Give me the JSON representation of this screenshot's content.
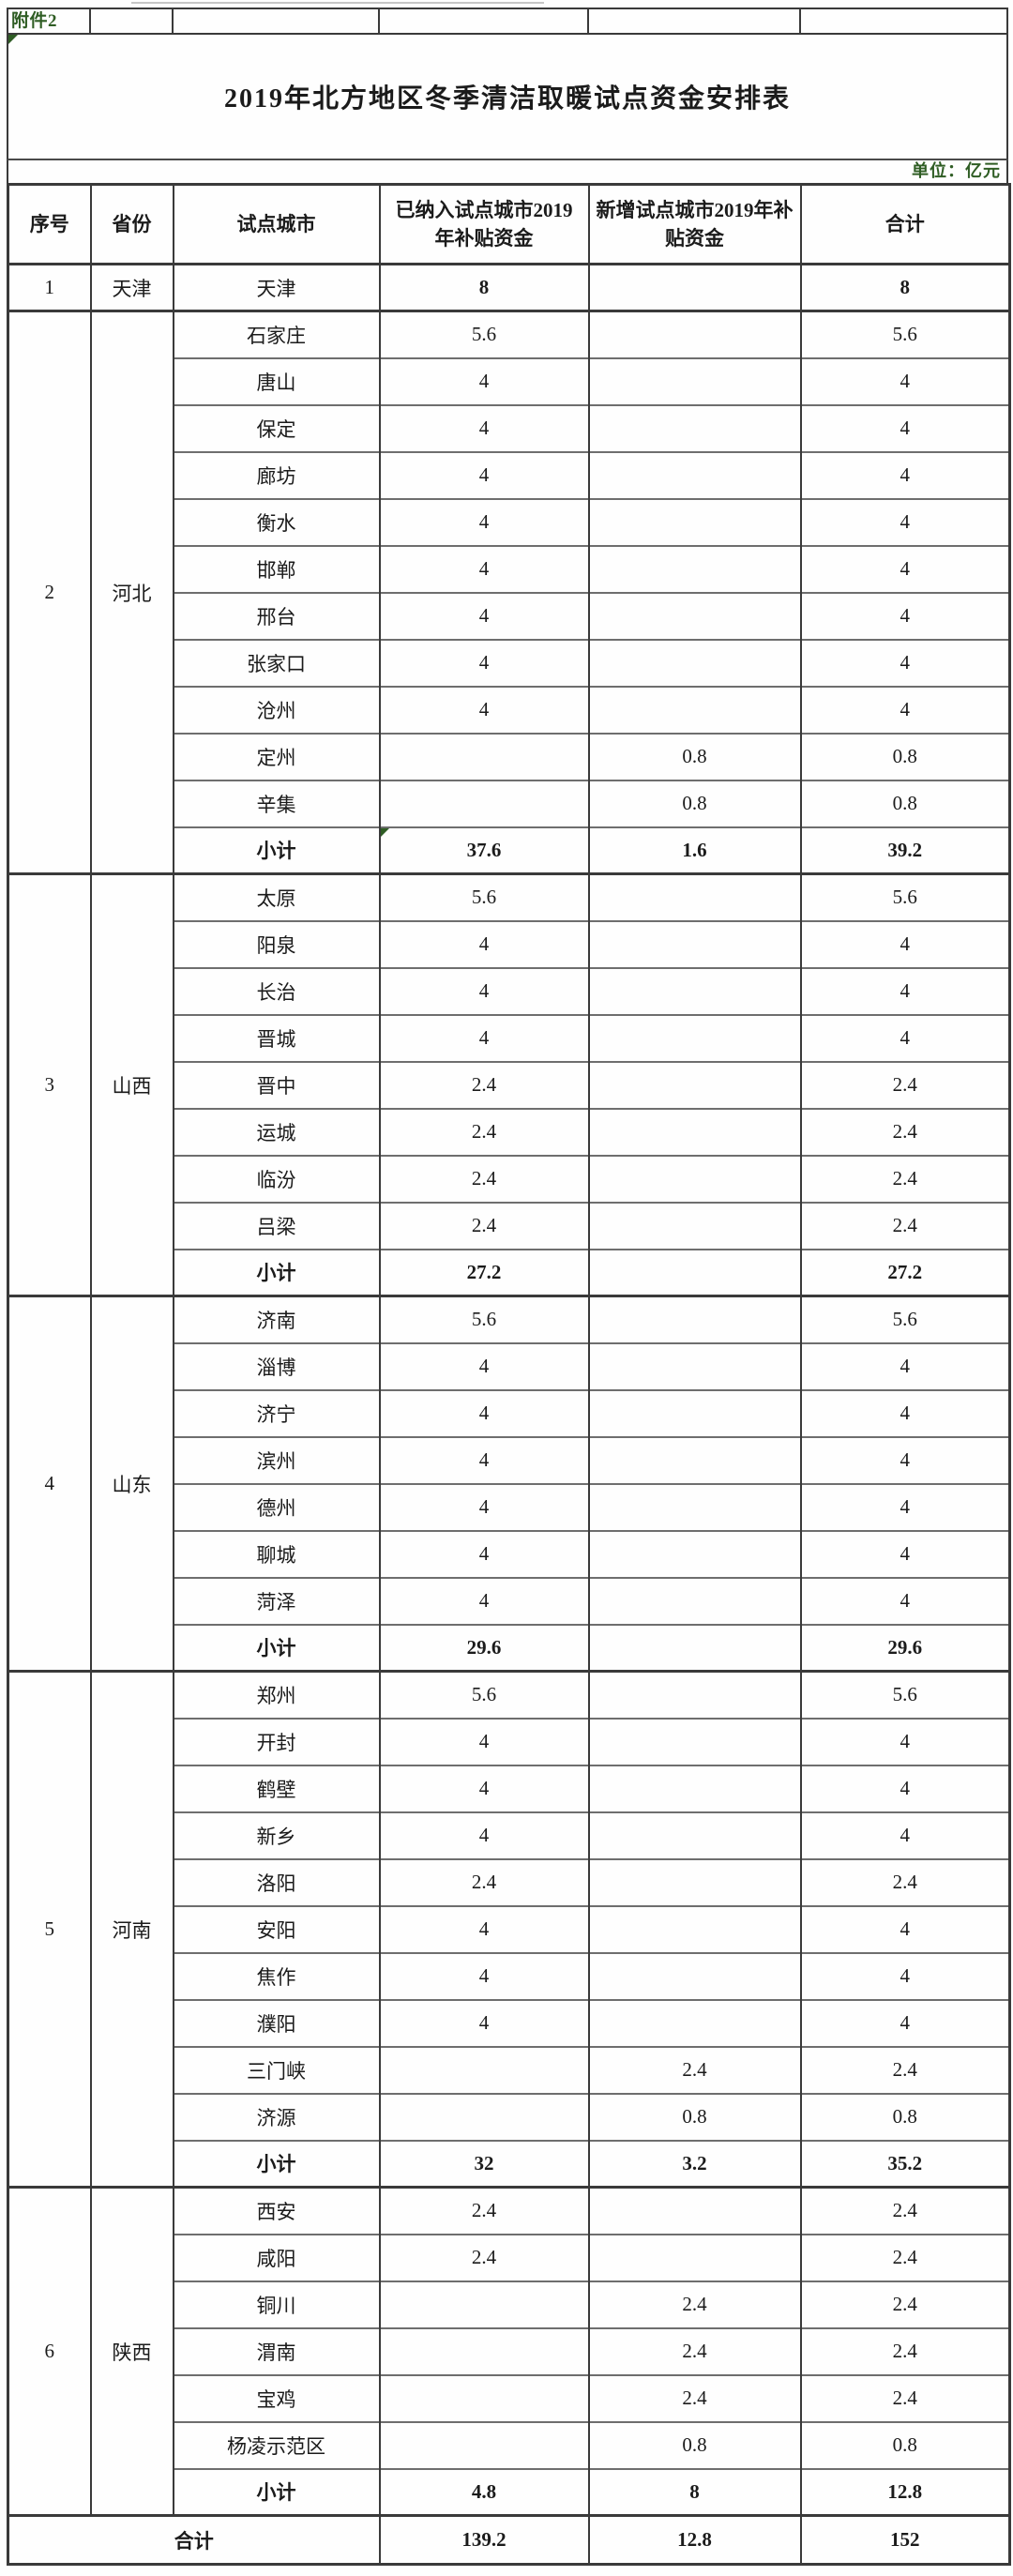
{
  "attachment_label": "附件2",
  "title": "2019年北方地区冬季清洁取暖试点资金安排表",
  "unit_note": "单位：亿元",
  "colors": {
    "accent_green": "#2f5d24",
    "border_dark": "#3a3a3a",
    "border_light": "#6e6e6e",
    "text": "#1b1b1b"
  },
  "table": {
    "headers": [
      "序号",
      "省份",
      "试点城市",
      "已纳入试点城市2019年补贴资金",
      "新增试点城市2019年补贴资金",
      "合计"
    ],
    "groups": [
      {
        "index": "1",
        "province": "天津",
        "rows": [
          {
            "city": "天津",
            "existing": "8",
            "added": "",
            "total": "8",
            "emphasis": true
          }
        ]
      },
      {
        "index": "2",
        "province": "河北",
        "rows": [
          {
            "city": "石家庄",
            "existing": "5.6",
            "added": "",
            "total": "5.6"
          },
          {
            "city": "唐山",
            "existing": "4",
            "added": "",
            "total": "4"
          },
          {
            "city": "保定",
            "existing": "4",
            "added": "",
            "total": "4"
          },
          {
            "city": "廊坊",
            "existing": "4",
            "added": "",
            "total": "4"
          },
          {
            "city": "衡水",
            "existing": "4",
            "added": "",
            "total": "4"
          },
          {
            "city": "邯郸",
            "existing": "4",
            "added": "",
            "total": "4"
          },
          {
            "city": "邢台",
            "existing": "4",
            "added": "",
            "total": "4"
          },
          {
            "city": "张家口",
            "existing": "4",
            "added": "",
            "total": "4"
          },
          {
            "city": "沧州",
            "existing": "4",
            "added": "",
            "total": "4"
          },
          {
            "city": "定州",
            "existing": "",
            "added": "0.8",
            "total": "0.8"
          },
          {
            "city": "辛集",
            "existing": "",
            "added": "0.8",
            "total": "0.8"
          },
          {
            "city": "小计",
            "existing": "37.6",
            "added": "1.6",
            "total": "39.2",
            "subtotal": true,
            "indicator": true
          }
        ]
      },
      {
        "index": "3",
        "province": "山西",
        "rows": [
          {
            "city": "太原",
            "existing": "5.6",
            "added": "",
            "total": "5.6"
          },
          {
            "city": "阳泉",
            "existing": "4",
            "added": "",
            "total": "4"
          },
          {
            "city": "长治",
            "existing": "4",
            "added": "",
            "total": "4"
          },
          {
            "city": "晋城",
            "existing": "4",
            "added": "",
            "total": "4"
          },
          {
            "city": "晋中",
            "existing": "2.4",
            "added": "",
            "total": "2.4"
          },
          {
            "city": "运城",
            "existing": "2.4",
            "added": "",
            "total": "2.4"
          },
          {
            "city": "临汾",
            "existing": "2.4",
            "added": "",
            "total": "2.4"
          },
          {
            "city": "吕梁",
            "existing": "2.4",
            "added": "",
            "total": "2.4"
          },
          {
            "city": "小计",
            "existing": "27.2",
            "added": "",
            "total": "27.2",
            "subtotal": true
          }
        ]
      },
      {
        "index": "4",
        "province": "山东",
        "rows": [
          {
            "city": "济南",
            "existing": "5.6",
            "added": "",
            "total": "5.6"
          },
          {
            "city": "淄博",
            "existing": "4",
            "added": "",
            "total": "4"
          },
          {
            "city": "济宁",
            "existing": "4",
            "added": "",
            "total": "4"
          },
          {
            "city": "滨州",
            "existing": "4",
            "added": "",
            "total": "4"
          },
          {
            "city": "德州",
            "existing": "4",
            "added": "",
            "total": "4"
          },
          {
            "city": "聊城",
            "existing": "4",
            "added": "",
            "total": "4"
          },
          {
            "city": "菏泽",
            "existing": "4",
            "added": "",
            "total": "4"
          },
          {
            "city": "小计",
            "existing": "29.6",
            "added": "",
            "total": "29.6",
            "subtotal": true
          }
        ]
      },
      {
        "index": "5",
        "province": "河南",
        "rows": [
          {
            "city": "郑州",
            "existing": "5.6",
            "added": "",
            "total": "5.6"
          },
          {
            "city": "开封",
            "existing": "4",
            "added": "",
            "total": "4"
          },
          {
            "city": "鹤壁",
            "existing": "4",
            "added": "",
            "total": "4"
          },
          {
            "city": "新乡",
            "existing": "4",
            "added": "",
            "total": "4"
          },
          {
            "city": "洛阳",
            "existing": "2.4",
            "added": "",
            "total": "2.4"
          },
          {
            "city": "安阳",
            "existing": "4",
            "added": "",
            "total": "4"
          },
          {
            "city": "焦作",
            "existing": "4",
            "added": "",
            "total": "4"
          },
          {
            "city": "濮阳",
            "existing": "4",
            "added": "",
            "total": "4"
          },
          {
            "city": "三门峡",
            "existing": "",
            "added": "2.4",
            "total": "2.4"
          },
          {
            "city": "济源",
            "existing": "",
            "added": "0.8",
            "total": "0.8"
          },
          {
            "city": "小计",
            "existing": "32",
            "added": "3.2",
            "total": "35.2",
            "subtotal": true
          }
        ]
      },
      {
        "index": "6",
        "province": "陕西",
        "rows": [
          {
            "city": "西安",
            "existing": "2.4",
            "added": "",
            "total": "2.4"
          },
          {
            "city": "咸阳",
            "existing": "2.4",
            "added": "",
            "total": "2.4"
          },
          {
            "city": "铜川",
            "existing": "",
            "added": "2.4",
            "total": "2.4"
          },
          {
            "city": "渭南",
            "existing": "",
            "added": "2.4",
            "total": "2.4"
          },
          {
            "city": "宝鸡",
            "existing": "",
            "added": "2.4",
            "total": "2.4"
          },
          {
            "city": "杨凌示范区",
            "existing": "",
            "added": "0.8",
            "total": "0.8"
          },
          {
            "city": "小计",
            "existing": "4.8",
            "added": "8",
            "total": "12.8",
            "subtotal": true
          }
        ]
      }
    ],
    "grand_total": {
      "label": "合计",
      "existing": "139.2",
      "added": "12.8",
      "total": "152"
    }
  }
}
